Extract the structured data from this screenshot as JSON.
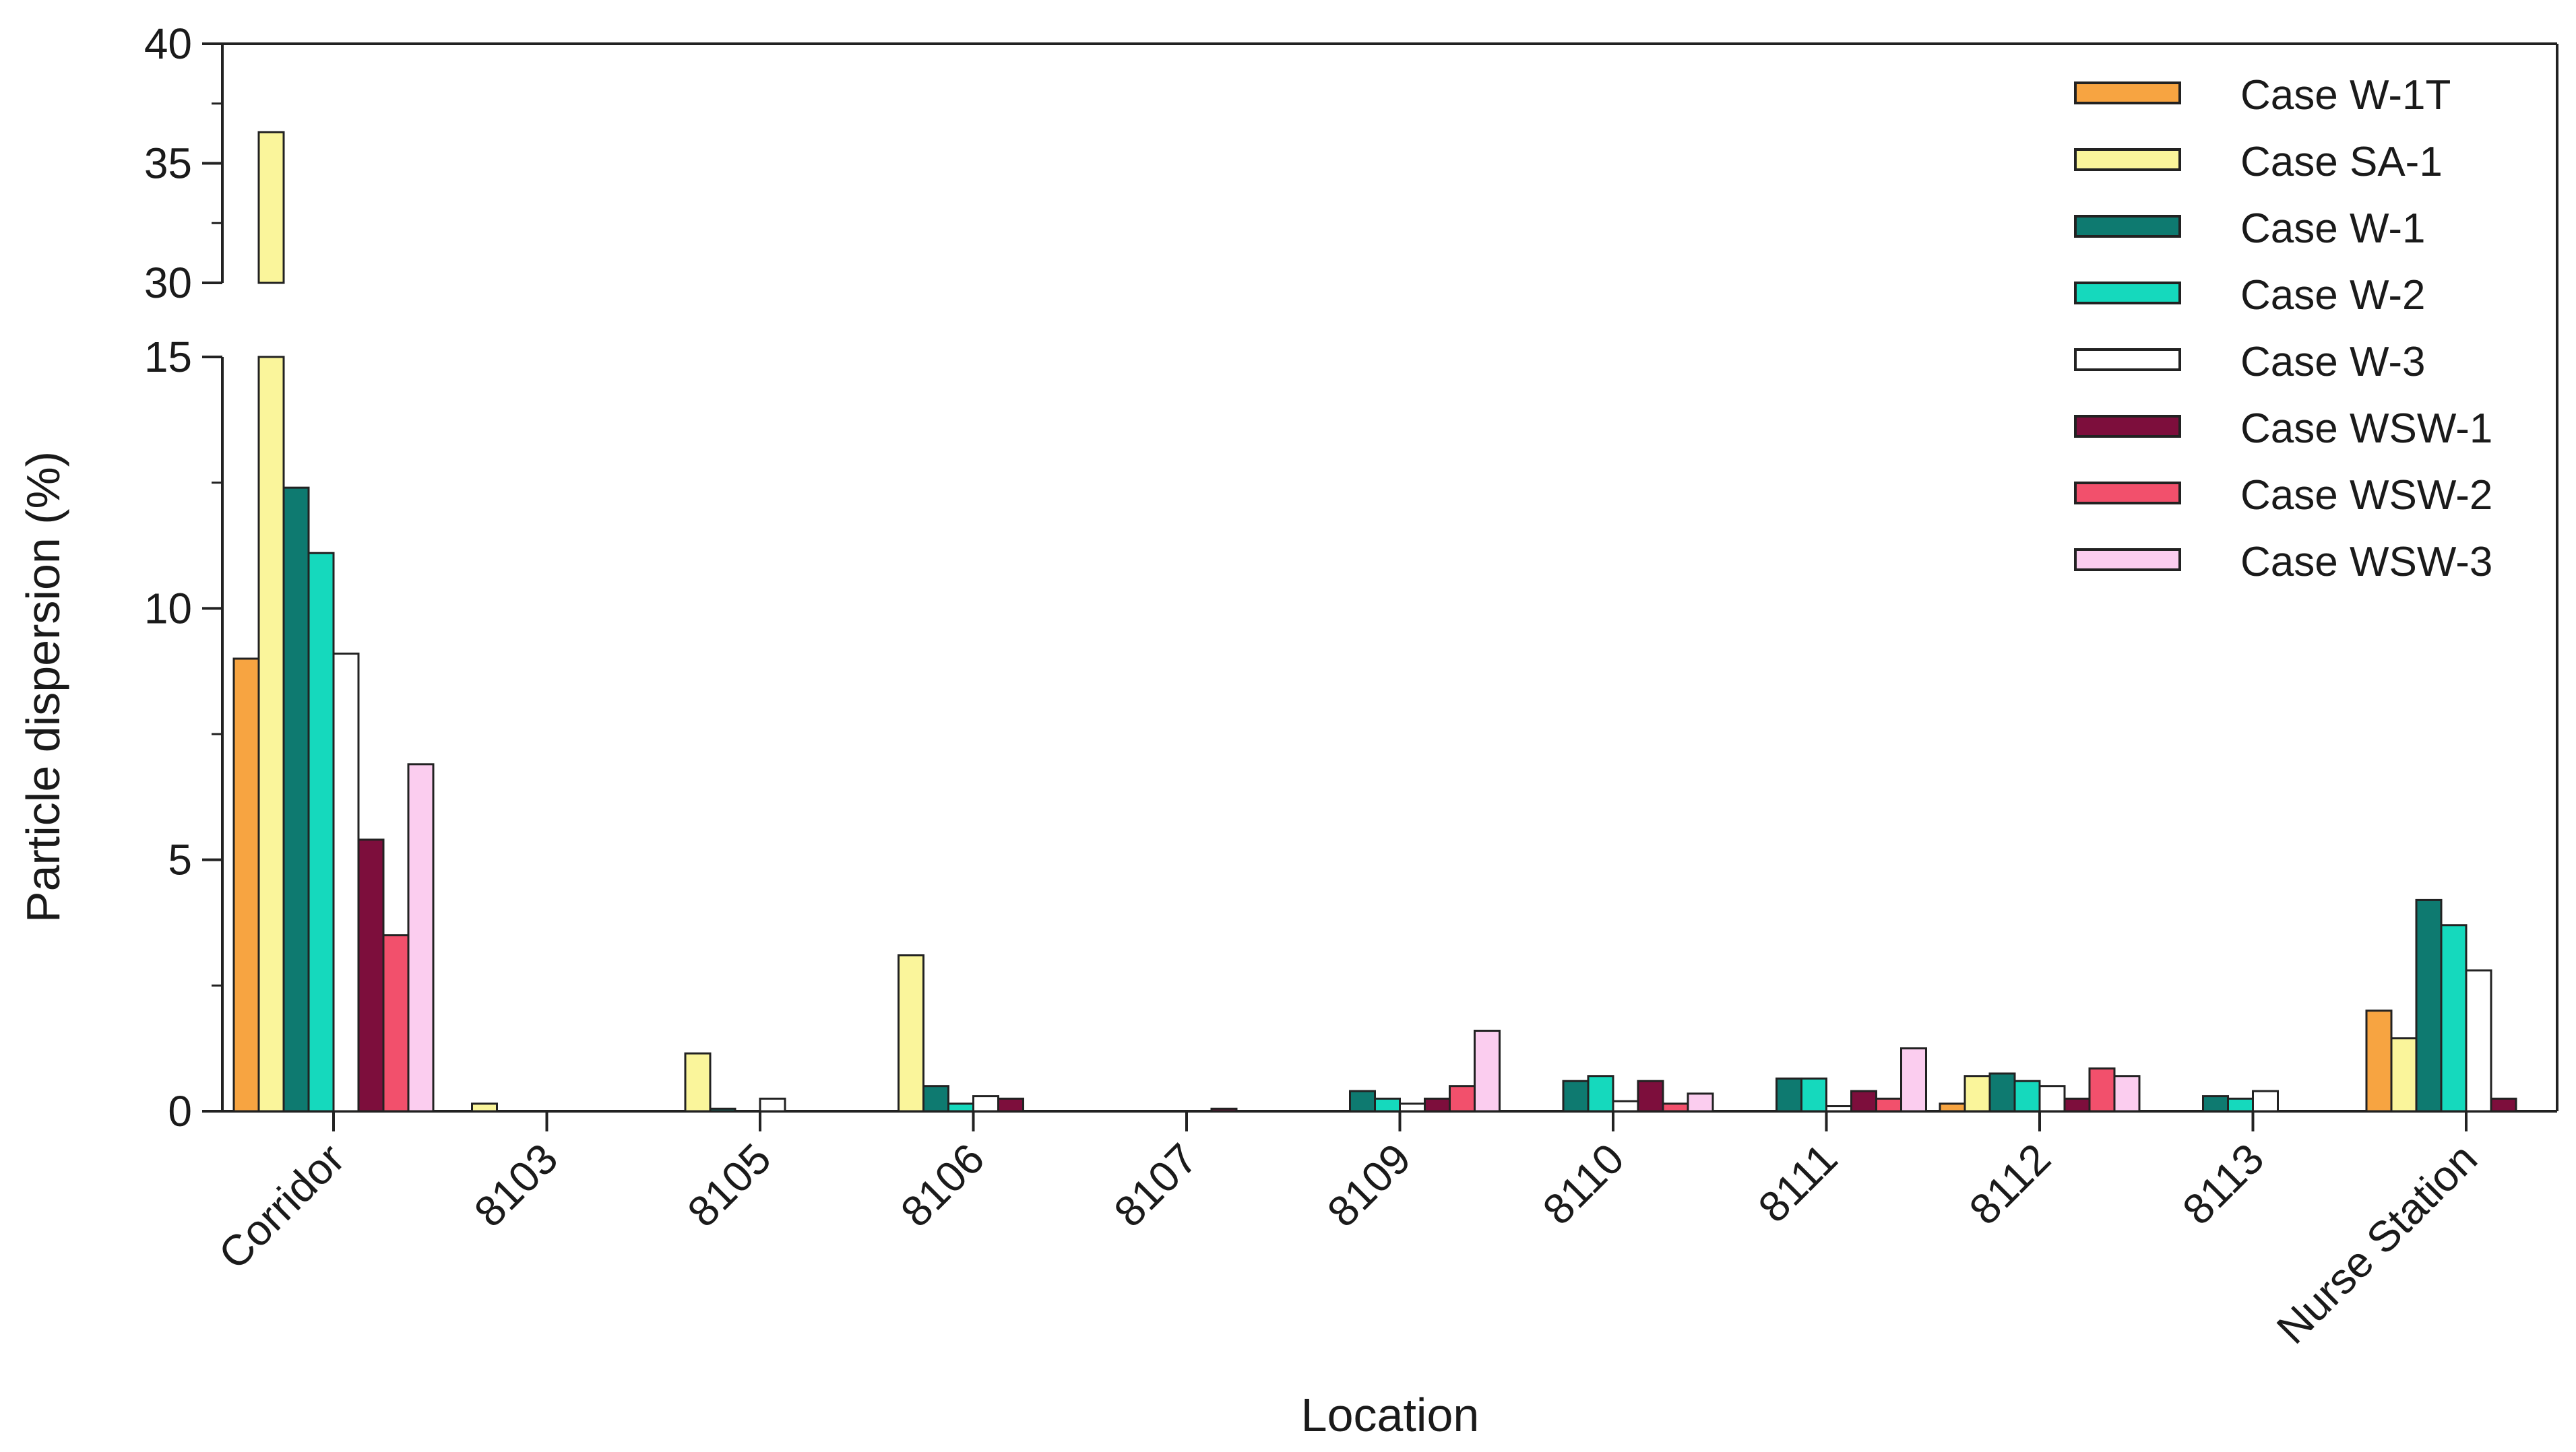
{
  "chart_data": {
    "type": "bar",
    "xlabel": "Location",
    "ylabel": "Particle dispersion (%)",
    "y_axis_break": {
      "lower_range": [
        0,
        15
      ],
      "upper_range": [
        30,
        40
      ]
    },
    "lower_ticks": [
      0,
      5,
      10,
      15
    ],
    "upper_ticks": [
      30,
      35,
      40
    ],
    "legend_position": "top-right",
    "categories": [
      "Corridor",
      "8103",
      "8105",
      "8106",
      "8107",
      "8109",
      "8110",
      "8111",
      "8112",
      "8113",
      "Nurse Station"
    ],
    "series": [
      {
        "name": "Case W-1T",
        "color": "#F7A441",
        "values": [
          9.0,
          0,
          0,
          0,
          0,
          0,
          0,
          0,
          0.15,
          0,
          2.0
        ]
      },
      {
        "name": "Case SA-1",
        "color": "#FAF59B",
        "values": [
          36.3,
          0.15,
          1.15,
          3.1,
          0,
          0,
          0,
          0,
          0.7,
          0,
          1.45
        ]
      },
      {
        "name": "Case W-1",
        "color": "#0E7A70",
        "values": [
          12.4,
          0,
          0.05,
          0.5,
          0,
          0.4,
          0.6,
          0.65,
          0.75,
          0.3,
          4.2
        ]
      },
      {
        "name": "Case W-2",
        "color": "#15D9BD",
        "values": [
          11.1,
          0,
          0,
          0.15,
          0,
          0.25,
          0.7,
          0.65,
          0.6,
          0.25,
          3.7
        ]
      },
      {
        "name": "Case W-3",
        "color": "#FFFFFF",
        "values": [
          9.1,
          0,
          0.25,
          0.3,
          0,
          0.15,
          0.2,
          0.1,
          0.5,
          0.4,
          2.8
        ]
      },
      {
        "name": "Case WSW-1",
        "color": "#7D0E3C",
        "values": [
          5.4,
          0,
          0,
          0.25,
          0.05,
          0.25,
          0.6,
          0.4,
          0.25,
          0,
          0.25
        ]
      },
      {
        "name": "Case WSW-2",
        "color": "#F2506C",
        "values": [
          3.5,
          0,
          0,
          0,
          0,
          0.5,
          0.15,
          0.25,
          0.85,
          0,
          0
        ]
      },
      {
        "name": "Case WSW-3",
        "color": "#FBCDEF",
        "values": [
          6.9,
          0,
          0,
          0,
          0,
          1.6,
          0.35,
          1.25,
          0.7,
          0,
          0
        ]
      }
    ]
  }
}
